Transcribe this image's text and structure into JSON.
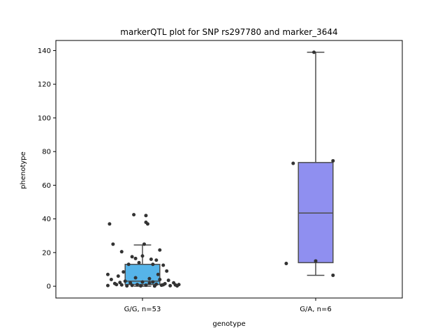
{
  "chart_data": {
    "type": "box",
    "title": "markerQTL plot for SNP rs297780 and marker_3644",
    "xlabel": "genotype",
    "ylabel": "phenotype",
    "ylim": [
      -7,
      146
    ],
    "yticks": [
      0,
      20,
      40,
      60,
      80,
      100,
      120,
      140
    ],
    "grid": false,
    "legend": "none",
    "categories": [
      "G/G, n=53",
      "G/A, n=6"
    ],
    "box_colors": [
      "#56b4e9",
      "#8f8ff0"
    ],
    "box_edge_color": "#4d4d4d",
    "point_color": "#333333",
    "boxes": [
      {
        "label": "G/G, n=53",
        "whisker_low": 0,
        "q1": 1,
        "median": 3,
        "q3": 13,
        "whisker_high": 24.5,
        "outliers": [
          37,
          42,
          42.5,
          36.5,
          38
        ]
      },
      {
        "label": "G/A, n=6",
        "whisker_low": 6.5,
        "q1": 14,
        "median": 43.5,
        "q3": 73.5,
        "whisker_high": 139,
        "outliers": []
      }
    ],
    "points": [
      [
        {
          "j": -0.05,
          "y": 42.5
        },
        {
          "j": 0.02,
          "y": 42
        },
        {
          "j": 0.03,
          "y": 37
        },
        {
          "j": 0.02,
          "y": 38
        },
        {
          "j": -0.19,
          "y": 37
        },
        {
          "j": 0.1,
          "y": 21.5
        },
        {
          "j": -0.12,
          "y": 20.5
        },
        {
          "j": 0.01,
          "y": 25
        },
        {
          "j": -0.17,
          "y": 25
        },
        {
          "j": 0.0,
          "y": 18
        },
        {
          "j": -0.06,
          "y": 17.5
        },
        {
          "j": -0.04,
          "y": 16.5
        },
        {
          "j": 0.05,
          "y": 16
        },
        {
          "j": 0.08,
          "y": 15.5
        },
        {
          "j": -0.02,
          "y": 14
        },
        {
          "j": 0.06,
          "y": 13
        },
        {
          "j": 0.12,
          "y": 12.5
        },
        {
          "j": -0.08,
          "y": 13
        },
        {
          "j": 0.14,
          "y": 9
        },
        {
          "j": -0.11,
          "y": 8.5
        },
        {
          "j": -0.2,
          "y": 7
        },
        {
          "j": 0.09,
          "y": 7
        },
        {
          "j": -0.14,
          "y": 6
        },
        {
          "j": -0.04,
          "y": 5
        },
        {
          "j": 0.04,
          "y": 4.5
        },
        {
          "j": 0.1,
          "y": 4
        },
        {
          "j": -0.18,
          "y": 4
        },
        {
          "j": -0.1,
          "y": 3
        },
        {
          "j": 0.15,
          "y": 3.5
        },
        {
          "j": 0.0,
          "y": 2.5
        },
        {
          "j": 0.18,
          "y": 2
        },
        {
          "j": 0.06,
          "y": 2.5
        },
        {
          "j": -0.07,
          "y": 2
        },
        {
          "j": 0.13,
          "y": 1.5
        },
        {
          "j": -0.03,
          "y": 1
        },
        {
          "j": 0.21,
          "y": 1
        },
        {
          "j": -0.15,
          "y": 1
        },
        {
          "j": 0.08,
          "y": 1.2
        },
        {
          "j": -0.12,
          "y": 0.8
        },
        {
          "j": 0.02,
          "y": 0.6
        },
        {
          "j": -0.2,
          "y": 0.4
        },
        {
          "j": 0.16,
          "y": 0.3
        },
        {
          "j": -0.09,
          "y": 0.2
        },
        {
          "j": 0.11,
          "y": 0.6
        },
        {
          "j": -0.01,
          "y": 0.2
        },
        {
          "j": 0.19,
          "y": 0.8
        },
        {
          "j": -0.16,
          "y": 1.6
        },
        {
          "j": 0.07,
          "y": 0.1
        },
        {
          "j": -0.06,
          "y": 0.5
        },
        {
          "j": 0.2,
          "y": 0.2
        },
        {
          "j": 0.04,
          "y": 1.8
        },
        {
          "j": -0.13,
          "y": 2.2
        },
        {
          "j": 0.12,
          "y": 0.9
        }
      ],
      [
        {
          "j": -0.01,
          "y": 139
        },
        {
          "j": 0.1,
          "y": 74.5
        },
        {
          "j": -0.13,
          "y": 73
        },
        {
          "j": 0.0,
          "y": 15
        },
        {
          "j": -0.17,
          "y": 13.5
        },
        {
          "j": 0.1,
          "y": 6.5
        }
      ]
    ]
  }
}
